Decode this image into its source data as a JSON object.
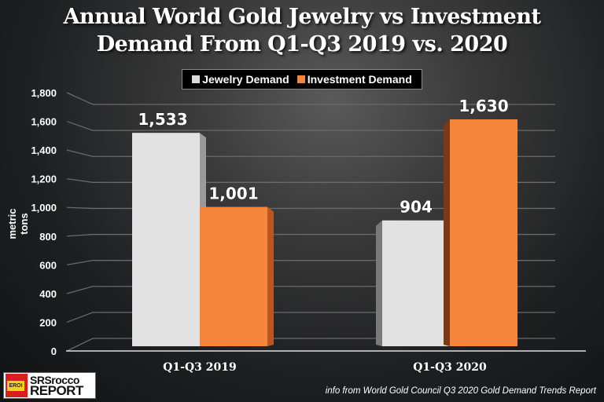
{
  "title_line1": "Annual World Gold Jewelry vs Investment",
  "title_line2": "Demand From Q1-Q3 2019 vs. 2020",
  "legend": [
    {
      "label": "Jewelry Demand",
      "color": "#dcdcdc"
    },
    {
      "label": "Investment Demand",
      "color": "#f4853a"
    }
  ],
  "source": "info from World Gold Council Q3 2020 Gold Demand Trends Report",
  "logo": {
    "line1": "SRSrocco",
    "line2": "REPORT",
    "badge": "EROI"
  },
  "chart_data": {
    "type": "bar",
    "title": "Annual World Gold Jewelry vs Investment Demand From Q1-Q3 2019 vs. 2020",
    "xlabel": "",
    "ylabel": "metric tons",
    "ylim": [
      0,
      1800
    ],
    "yticks": [
      0,
      200,
      400,
      600,
      800,
      1000,
      1200,
      1400,
      1600,
      1800
    ],
    "ytick_labels": [
      "0",
      "200",
      "400",
      "600",
      "800",
      "1,000",
      "1,200",
      "1,400",
      "1,600",
      "1,800"
    ],
    "categories": [
      "Q1-Q3 2019",
      "Q1-Q3 2020"
    ],
    "series": [
      {
        "name": "Jewelry Demand",
        "values": [
          1533,
          904
        ],
        "labels": [
          "1,533",
          "904"
        ],
        "color": "#dcdcdc"
      },
      {
        "name": "Investment Demand",
        "values": [
          1001,
          1630
        ],
        "labels": [
          "1,001",
          "1,630"
        ],
        "color": "#f4853a"
      }
    ],
    "grid": true,
    "legend_position": "top-center"
  }
}
